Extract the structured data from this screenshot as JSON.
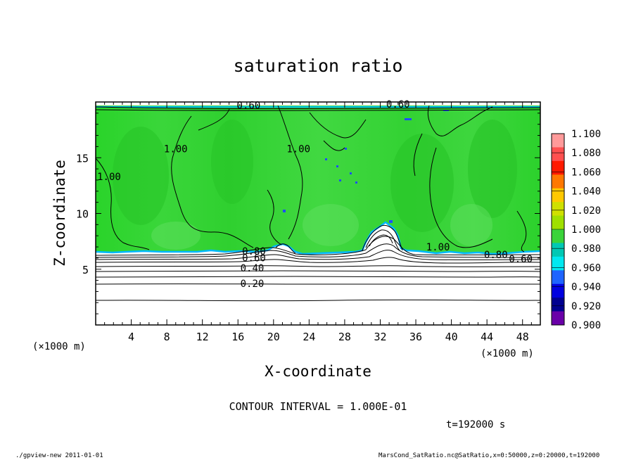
{
  "chart_data": {
    "type": "contour",
    "title": "saturation ratio",
    "xlabel": "X-coordinate",
    "ylabel": "Z-coordinate",
    "x_unit_left": "(×1000 m)",
    "x_unit_right": "(×1000 m)",
    "xlim": [
      0,
      50
    ],
    "ylim": [
      0,
      20
    ],
    "x_ticks": [
      "4",
      "8",
      "12",
      "16",
      "20",
      "24",
      "28",
      "32",
      "36",
      "40",
      "44",
      "48"
    ],
    "y_ticks": [
      "5",
      "10",
      "15"
    ],
    "contour_interval_text": "CONTOUR INTERVAL = 1.000E-01",
    "time_text": "t=192000 s",
    "footer_left": "./gpview-new  2011-01-01",
    "footer_right": "MarsCond_SatRatio.nc@SatRatio,x=0:50000,z=0:20000,t=192000",
    "colorbar": {
      "levels": [
        "1.100",
        "1.080",
        "1.060",
        "1.040",
        "1.020",
        "1.000",
        "0.980",
        "0.960",
        "0.940",
        "0.920",
        "0.900"
      ],
      "colors": [
        "#ff9a9a",
        "#ff5050",
        "#ff1a00",
        "#ff7800",
        "#ffc800",
        "#cfe000",
        "#9fe000",
        "#3ad43a",
        "#00c8b4",
        "#00e8f0",
        "#1e64ff",
        "#0000e0",
        "#000090",
        "#6a00a8"
      ]
    },
    "contour_labels": [
      {
        "text": "0.60",
        "x": 17.2,
        "y": 19.4
      },
      {
        "text": "0.60",
        "x": 34.0,
        "y": 19.5
      },
      {
        "text": "1.00",
        "x": 1.5,
        "y": 13.0
      },
      {
        "text": "1.00",
        "x": 9.0,
        "y": 15.5
      },
      {
        "text": "1.00",
        "x": 22.8,
        "y": 15.5
      },
      {
        "text": "1.00",
        "x": 38.5,
        "y": 6.7
      },
      {
        "text": "0.80",
        "x": 17.8,
        "y": 6.3
      },
      {
        "text": "0.60",
        "x": 17.8,
        "y": 5.7
      },
      {
        "text": "0.40",
        "x": 17.6,
        "y": 4.8
      },
      {
        "text": "0.20",
        "x": 17.6,
        "y": 3.4
      },
      {
        "text": "0.80",
        "x": 45.0,
        "y": 6.0
      },
      {
        "text": "0.60",
        "x": 47.8,
        "y": 5.6
      }
    ]
  }
}
